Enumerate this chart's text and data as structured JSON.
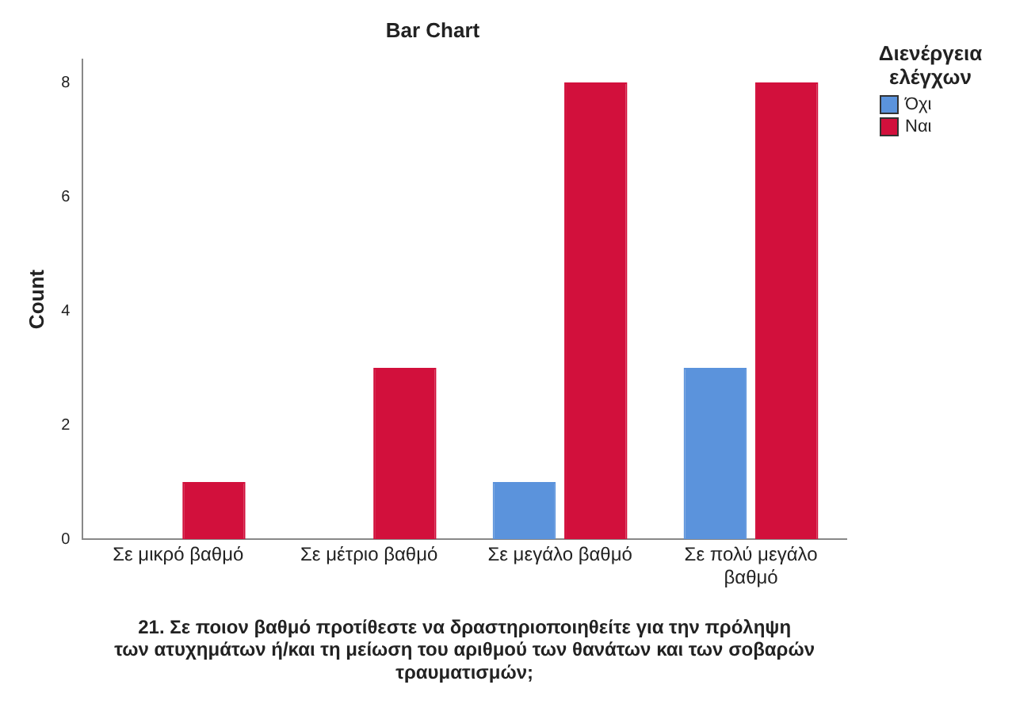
{
  "chart_data": {
    "type": "bar",
    "title": "Bar Chart",
    "xlabel": "21. Σε ποιον βαθμό προτίθεστε να δραστηριοποιηθείτε για την πρόληψη των ατυχημάτων ή/και τη μείωση του αριθμού των θανάτων και των σοβαρών τραυματισμών;",
    "ylabel": "Count",
    "legend_title": "Διενέργεια ελέγχων",
    "categories": [
      "Σε μικρό βαθμό",
      "Σε μέτριο βαθμό",
      "Σε μεγάλο βαθμό",
      "Σε πολύ μεγάλο βαθμό"
    ],
    "series": [
      {
        "name": "Όχι",
        "color": "#5b93dc",
        "values": [
          null,
          null,
          1,
          3
        ]
      },
      {
        "name": "Ναι",
        "color": "#d2103c",
        "values": [
          1,
          3,
          8,
          8
        ]
      }
    ],
    "ylim": [
      0,
      8.4
    ],
    "yticks": [
      0,
      2,
      4,
      6,
      8
    ],
    "grid": false,
    "legend": "top right"
  }
}
